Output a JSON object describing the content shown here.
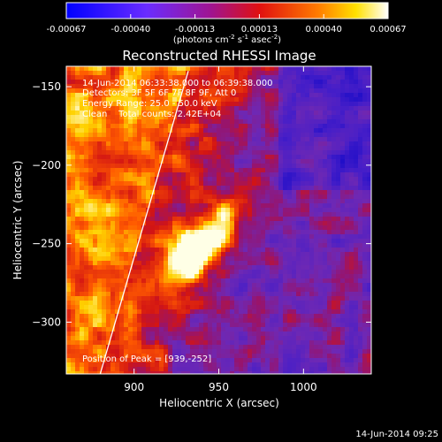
{
  "chart_data": {
    "type": "heatmap",
    "title": "Reconstructed RHESSI Image",
    "xlabel": "Heliocentric X (arcsec)",
    "ylabel": "Heliocentric Y (arcsec)",
    "xlim": [
      860,
      1040
    ],
    "ylim": [
      -333,
      -137
    ],
    "xticks": [
      900,
      950,
      1000
    ],
    "yticks": [
      -150,
      -200,
      -250,
      -300
    ],
    "colorbar": {
      "range": [
        -0.00067,
        0.00067
      ],
      "ticks": [
        "-0.00067",
        "-0.00040",
        "-0.00013",
        "0.00013",
        "0.00040",
        "0.00067"
      ],
      "unit_base": "(photons cm",
      "unit_sup1": "-2",
      "unit_mid": " s",
      "unit_sup2": "-1",
      "unit_mid2": " asec",
      "unit_sup3": "-2",
      "unit_end": ")"
    },
    "annotations": [
      "14-Jun-2014 06:33:38.000 to 06:39:38.000",
      "Detectors: 3F 5F 6F 7F 8F 9F, Att 0",
      "Energy Range: 25.0 - 50.0 keV",
      "Clean    Total counts: 2.42E+04"
    ],
    "peak_label": "Position of Peak = [939,-252]",
    "peak": [
      939,
      -252
    ],
    "limb_line": [
      [
        880,
        -333
      ],
      [
        932,
        -140
      ]
    ],
    "timestamp": "14-Jun-2014 09:25"
  }
}
